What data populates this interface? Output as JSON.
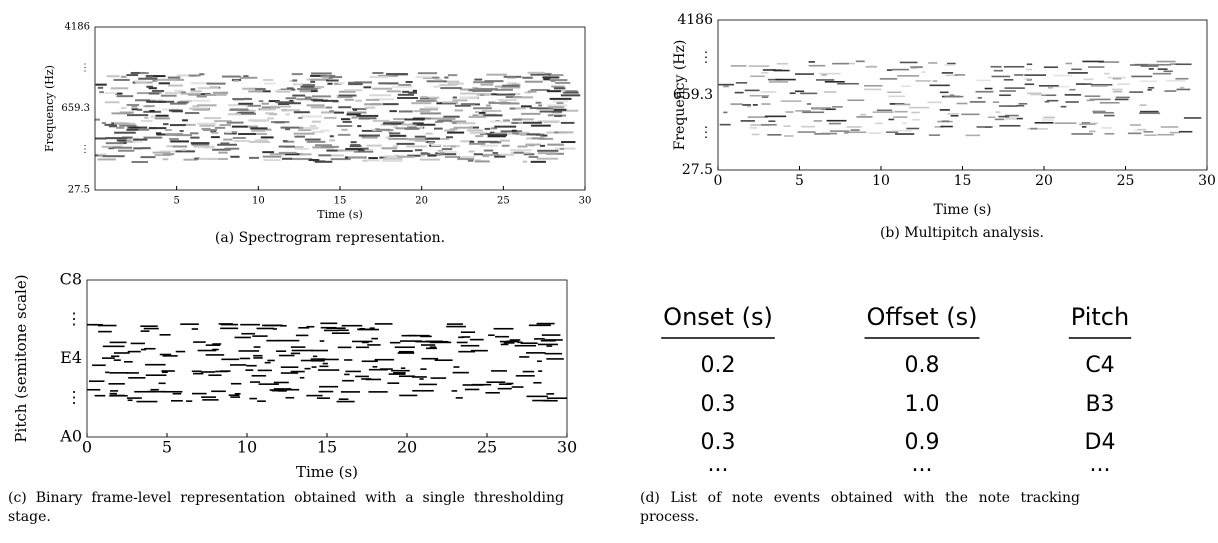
{
  "panels": [
    {
      "caption": "(a) Spectrogram representation.",
      "xlabel": "Time (s)",
      "ylabel": "Frequency (Hz)",
      "xlim": [
        0,
        30
      ],
      "xticks": [
        5,
        10,
        15,
        20,
        25,
        30
      ],
      "yticks": [
        "27.5",
        "⋮",
        "659.3",
        "⋮",
        "4186"
      ]
    },
    {
      "caption": "(b) Multipitch analysis.",
      "xlabel": "Time (s)",
      "ylabel": "Frequency (Hz)",
      "xlim": [
        0,
        30
      ],
      "xticks": [
        0,
        5,
        10,
        15,
        20,
        25,
        30
      ],
      "yticks": [
        "27.5",
        "⋮",
        "659.3",
        "⋮",
        "4186"
      ]
    },
    {
      "caption": "(c) Binary frame-level representation obtained with a single thresholding stage.",
      "xlabel": "Time (s)",
      "ylabel": "Pitch (semitone scale)",
      "xlim": [
        0,
        30
      ],
      "xticks": [
        0,
        5,
        10,
        15,
        20,
        25,
        30
      ],
      "yticks": [
        "A0",
        "⋮",
        "E4",
        "⋮",
        "C8"
      ]
    }
  ],
  "table": {
    "caption": "(d) List of note events obtained with the note tracking process.",
    "header": [
      "Onset (s)",
      "Offset (s)",
      "Pitch"
    ],
    "rows": [
      [
        "0.2",
        "0.8",
        "C4"
      ],
      [
        "0.3",
        "1.0",
        "B3"
      ],
      [
        "0.3",
        "0.9",
        "D4"
      ],
      [
        "...",
        "...",
        "..."
      ]
    ]
  }
}
